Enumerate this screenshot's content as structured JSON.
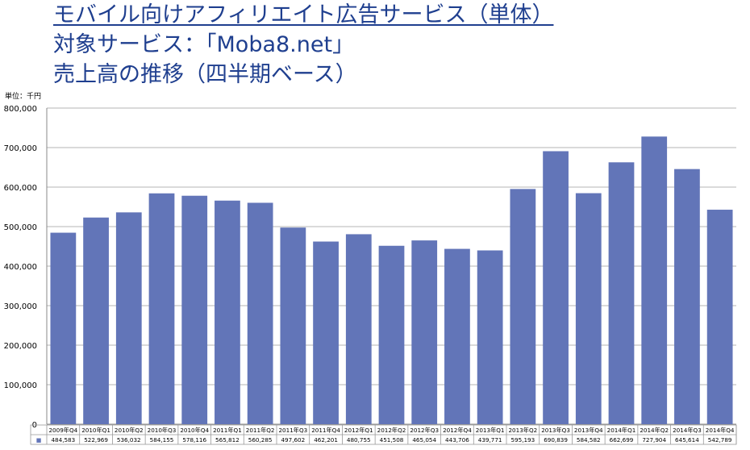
{
  "title": {
    "line1": "モバイル向けアフィリエイト広告サービス（単体）",
    "line2": "対象サービス：「Moba8.net」",
    "line3": "売上高の推移（四半期ベース）"
  },
  "unit_label": "単位：千円",
  "colors": {
    "bar": "#6275b8",
    "grid": "#b4b4b4",
    "title": "#1f3f8f"
  },
  "chart_data": {
    "type": "bar",
    "categories": [
      "2009年Q4",
      "2010年Q1",
      "2010年Q2",
      "2010年Q3",
      "2010年Q4",
      "2011年Q1",
      "2011年Q2",
      "2011年Q3",
      "2011年Q4",
      "2012年Q1",
      "2012年Q2",
      "2012年Q3",
      "2012年Q4",
      "2013年Q1",
      "2013年Q2",
      "2013年Q3",
      "2013年Q4",
      "2014年Q1",
      "2014年Q2",
      "2014年Q3",
      "2014年Q4"
    ],
    "values": [
      484583,
      522969,
      536032,
      584155,
      578116,
      565812,
      560285,
      497602,
      462201,
      480755,
      451508,
      465054,
      443706,
      439771,
      595193,
      690839,
      584582,
      662699,
      727904,
      645614,
      542789
    ],
    "value_labels": [
      "484,583",
      "522,969",
      "536,032",
      "584,155",
      "578,116",
      "565,812",
      "560,285",
      "497,602",
      "462,201",
      "480,755",
      "451,508",
      "465,054",
      "443,706",
      "439,771",
      "595,193",
      "690,839",
      "584,582",
      "662,699",
      "727,904",
      "645,614",
      "542,789"
    ],
    "ylim": [
      0,
      800000
    ],
    "yticks": [
      0,
      100000,
      200000,
      300000,
      400000,
      500000,
      600000,
      700000,
      800000
    ],
    "ytick_labels": [
      "0",
      "100,000",
      "200,000",
      "300,000",
      "400,000",
      "500,000",
      "600,000",
      "700,000",
      "800,000"
    ],
    "legend_marker": "■",
    "grid": true
  }
}
